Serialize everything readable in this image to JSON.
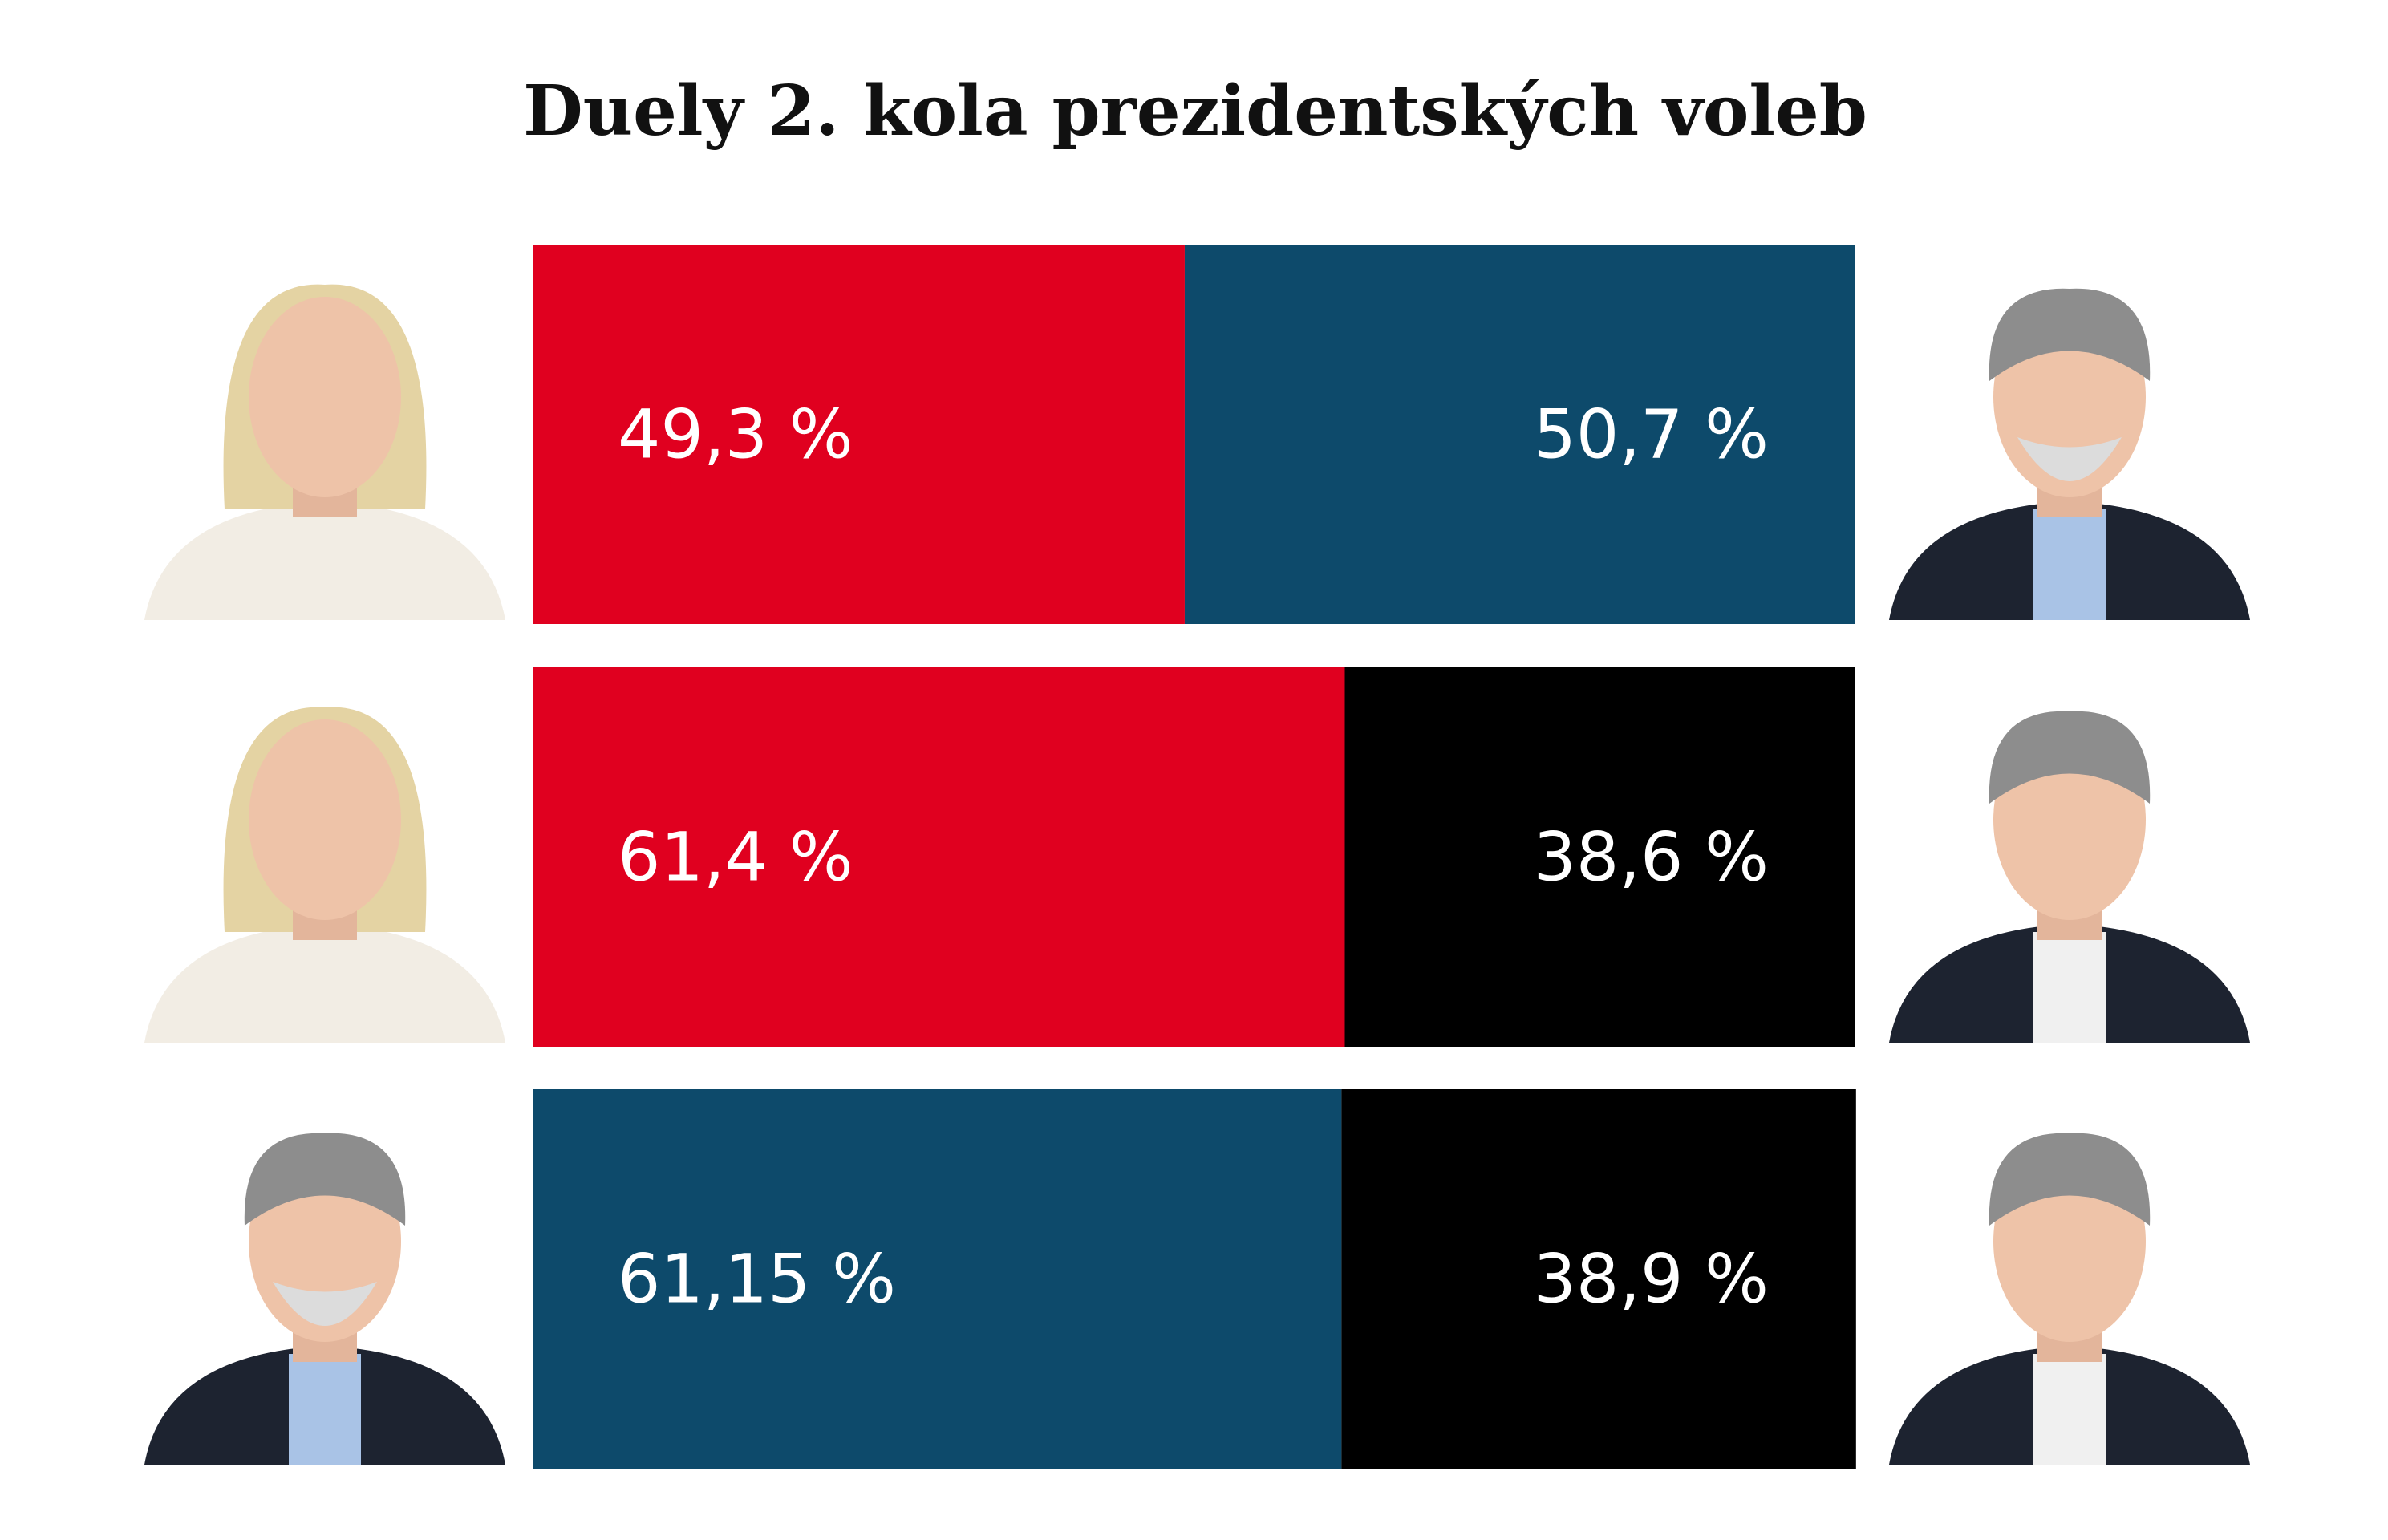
{
  "chart_data": {
    "type": "stacked-bar-horizontal",
    "title": "Duely 2. kola prezidentských voleb",
    "categories": [
      null,
      null,
      null
    ],
    "xlim": [
      0,
      100
    ],
    "series": [
      {
        "values": [
          49.3,
          61.4,
          61.15
        ],
        "value_labels": [
          "49,3 %",
          "61,4 %",
          "61,15 %"
        ],
        "colors": [
          "#e0001f",
          "#e0001f",
          "#0d4a6b"
        ]
      },
      {
        "values": [
          50.7,
          38.6,
          38.9
        ],
        "value_labels": [
          "50,7 %",
          "38,6 %",
          "38,9 %"
        ],
        "colors": [
          "#0d4a6b",
          "#000000",
          "#000000"
        ]
      }
    ]
  }
}
